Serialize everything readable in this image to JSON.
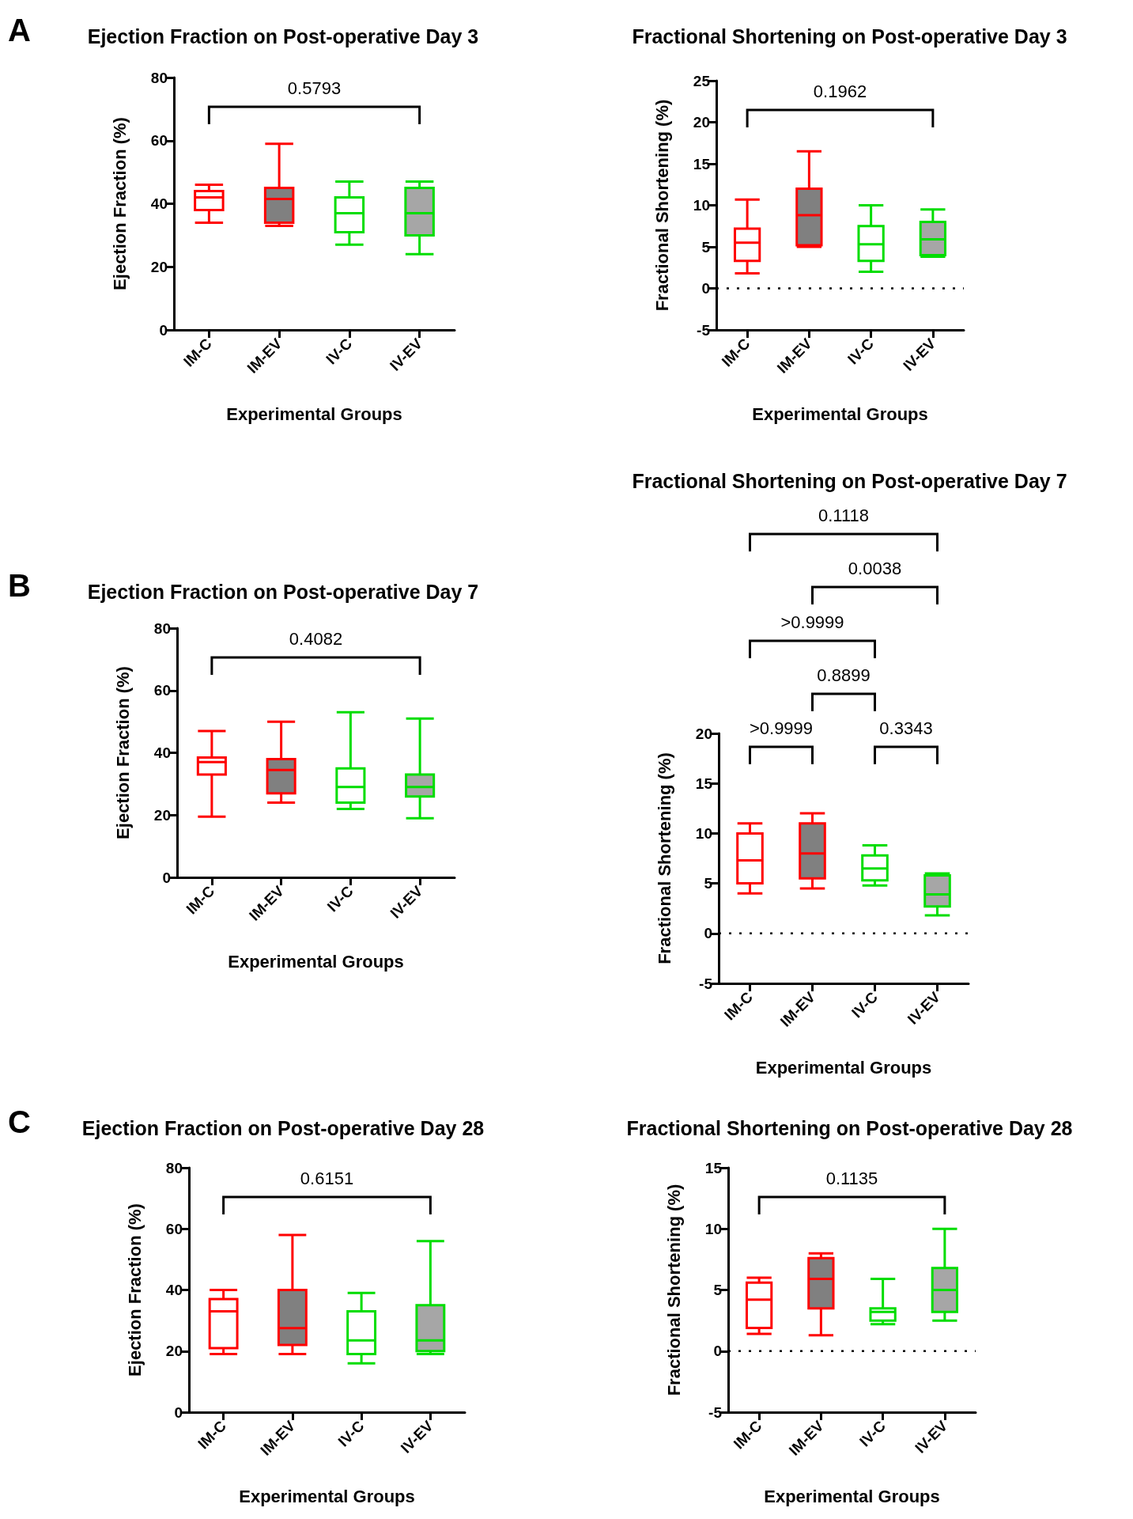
{
  "chart_data": [
    {
      "type": "box",
      "title": "Ejection Fraction on Post-operative Day 3",
      "xlabel": "Experimental Groups",
      "ylabel": "Ejection Fraction (%)",
      "categories": [
        "IM-C",
        "IM-EV",
        "IV-C",
        "IV-EV"
      ],
      "ylim": [
        0,
        80
      ],
      "yticks": [
        0,
        20,
        40,
        60,
        80
      ],
      "annotations": [
        "A",
        "0.5793"
      ],
      "series": [
        {
          "color": "#ff0000",
          "colors": [
            "#ffffff",
            "#808080",
            null,
            null
          ],
          "boxes": [
            {
              "low": 34,
              "q1": 38,
              "median": 42,
              "q3": 44,
              "high": 46
            },
            {
              "low": 33,
              "q1": 34,
              "median": 41.5,
              "q3": 45,
              "high": 59
            },
            null,
            null
          ]
        },
        {
          "color": "#00dd00",
          "colors": [
            null,
            null,
            "#ffffff",
            "#a6a6a6"
          ],
          "boxes": [
            null,
            null,
            {
              "low": 27,
              "q1": 31,
              "median": 37,
              "q3": 42,
              "high": 47
            },
            {
              "low": 24,
              "q1": 30,
              "median": 37,
              "q3": 45,
              "high": 47
            }
          ]
        }
      ]
    },
    {
      "type": "box",
      "title": "Fractional Shortening on Post-operative Day 3",
      "xlabel": "Experimental Groups",
      "ylabel": "Fractional Shortening (%)",
      "categories": [
        "IM-C",
        "IM-EV",
        "IV-C",
        "IV-EV"
      ],
      "ylim": [
        -5,
        25
      ],
      "yticks": [
        -5,
        0,
        5,
        10,
        15,
        20,
        25
      ],
      "annotations": [
        "0.1962"
      ],
      "ref_lines": [
        {
          "axis": "y",
          "value": 0,
          "line_style": "dotted"
        }
      ],
      "series": [
        {
          "color": "#ff0000",
          "colors": [
            "#ffffff",
            "#808080",
            null,
            null
          ],
          "boxes": [
            {
              "low": 1.8,
              "q1": 3.3,
              "median": 5.5,
              "q3": 7.2,
              "high": 10.7
            },
            {
              "low": 5,
              "q1": 5.2,
              "median": 8.8,
              "q3": 12,
              "high": 16.5
            },
            null,
            null
          ]
        },
        {
          "color": "#00dd00",
          "colors": [
            null,
            null,
            "#ffffff",
            "#a6a6a6"
          ],
          "boxes": [
            null,
            null,
            {
              "low": 2,
              "q1": 3.3,
              "median": 5.3,
              "q3": 7.5,
              "high": 10
            },
            {
              "low": 3.8,
              "q1": 4,
              "median": 5.9,
              "q3": 8,
              "high": 9.5
            }
          ]
        }
      ]
    },
    {
      "type": "box",
      "title": "Ejection Fraction on Post-operative Day 7",
      "xlabel": "Experimental Groups",
      "ylabel": "Ejection Fraction (%)",
      "categories": [
        "IM-C",
        "IM-EV",
        "IV-C",
        "IV-EV"
      ],
      "ylim": [
        0,
        80
      ],
      "yticks": [
        0,
        20,
        40,
        60,
        80
      ],
      "annotations": [
        "B",
        "0.4082"
      ],
      "series": [
        {
          "color": "#ff0000",
          "colors": [
            "#ffffff",
            "#808080",
            null,
            null
          ],
          "boxes": [
            {
              "low": 19.5,
              "q1": 33,
              "median": 37,
              "q3": 38.5,
              "high": 47
            },
            {
              "low": 24,
              "q1": 27,
              "median": 34.5,
              "q3": 38,
              "high": 50
            },
            null,
            null
          ]
        },
        {
          "color": "#00dd00",
          "colors": [
            null,
            null,
            "#ffffff",
            "#a6a6a6"
          ],
          "boxes": [
            null,
            null,
            {
              "low": 22,
              "q1": 24,
              "median": 29,
              "q3": 35,
              "high": 53
            },
            {
              "low": 19,
              "q1": 26,
              "median": 29,
              "q3": 33,
              "high": 51
            }
          ]
        }
      ]
    },
    {
      "type": "box",
      "title": "Fractional Shortening on Post-operative Day 7",
      "xlabel": "Experimental Groups",
      "ylabel": "Fractional Shortening (%)",
      "categories": [
        "IM-C",
        "IM-EV",
        "IV-C",
        "IV-EV"
      ],
      "ylim": [
        -5,
        20
      ],
      "yticks": [
        -5,
        0,
        5,
        10,
        15,
        20
      ],
      "annotations": [
        "0.1118",
        "0.0038",
        ">0.9999",
        "0.8899",
        ">0.9999",
        "0.3343"
      ],
      "ref_lines": [
        {
          "axis": "y",
          "value": 0,
          "line_style": "dotted"
        }
      ],
      "series": [
        {
          "color": "#ff0000",
          "colors": [
            "#ffffff",
            "#808080",
            null,
            null
          ],
          "boxes": [
            {
              "low": 4,
              "q1": 5,
              "median": 7.3,
              "q3": 10,
              "high": 11
            },
            {
              "low": 4.5,
              "q1": 5.5,
              "median": 8,
              "q3": 11,
              "high": 12
            },
            null,
            null
          ]
        },
        {
          "color": "#00dd00",
          "colors": [
            null,
            null,
            "#ffffff",
            "#a6a6a6"
          ],
          "boxes": [
            null,
            null,
            {
              "low": 4.8,
              "q1": 5.3,
              "median": 6.5,
              "q3": 7.8,
              "high": 8.8
            },
            {
              "low": 1.8,
              "q1": 2.7,
              "median": 3.9,
              "q3": 5.8,
              "high": 6
            }
          ]
        }
      ]
    },
    {
      "type": "box",
      "title": "Ejection Fraction on Post-operative Day 28",
      "xlabel": "Experimental Groups",
      "ylabel": "Ejection Fraction (%)",
      "categories": [
        "IM-C",
        "IM-EV",
        "IV-C",
        "IV-EV"
      ],
      "ylim": [
        0,
        80
      ],
      "yticks": [
        0,
        20,
        40,
        60,
        80
      ],
      "annotations": [
        "C",
        "0.6151"
      ],
      "series": [
        {
          "color": "#ff0000",
          "colors": [
            "#ffffff",
            "#808080",
            null,
            null
          ],
          "boxes": [
            {
              "low": 19,
              "q1": 21,
              "median": 33,
              "q3": 37,
              "high": 40
            },
            {
              "low": 19,
              "q1": 22,
              "median": 27.5,
              "q3": 40,
              "high": 58
            },
            null,
            null
          ]
        },
        {
          "color": "#00dd00",
          "colors": [
            null,
            null,
            "#ffffff",
            "#a6a6a6"
          ],
          "boxes": [
            null,
            null,
            {
              "low": 16,
              "q1": 19,
              "median": 23.5,
              "q3": 33,
              "high": 39
            },
            {
              "low": 19,
              "q1": 20,
              "median": 23.5,
              "q3": 35,
              "high": 56
            }
          ]
        }
      ]
    },
    {
      "type": "box",
      "title": "Fractional Shortening on Post-operative Day 28",
      "xlabel": "Experimental Groups",
      "ylabel": "Fractional Shortening (%)",
      "categories": [
        "IM-C",
        "IM-EV",
        "IV-C",
        "IV-EV"
      ],
      "ylim": [
        -5,
        15
      ],
      "yticks": [
        -5,
        0,
        5,
        10,
        15
      ],
      "annotations": [
        "0.1135"
      ],
      "ref_lines": [
        {
          "axis": "y",
          "value": 0,
          "line_style": "dotted"
        }
      ],
      "series": [
        {
          "color": "#ff0000",
          "colors": [
            "#ffffff",
            "#808080",
            null,
            null
          ],
          "boxes": [
            {
              "low": 1.4,
              "q1": 1.9,
              "median": 4.2,
              "q3": 5.6,
              "high": 6
            },
            {
              "low": 1.3,
              "q1": 3.5,
              "median": 5.9,
              "q3": 7.6,
              "high": 8
            },
            null,
            null
          ]
        },
        {
          "color": "#00dd00",
          "colors": [
            null,
            null,
            "#ffffff",
            "#a6a6a6"
          ],
          "boxes": [
            null,
            null,
            {
              "low": 2.2,
              "q1": 2.5,
              "median": 3.2,
              "q3": 3.5,
              "high": 5.9
            },
            {
              "low": 2.5,
              "q1": 3.2,
              "median": 5,
              "q3": 6.8,
              "high": 10
            }
          ]
        }
      ]
    }
  ]
}
